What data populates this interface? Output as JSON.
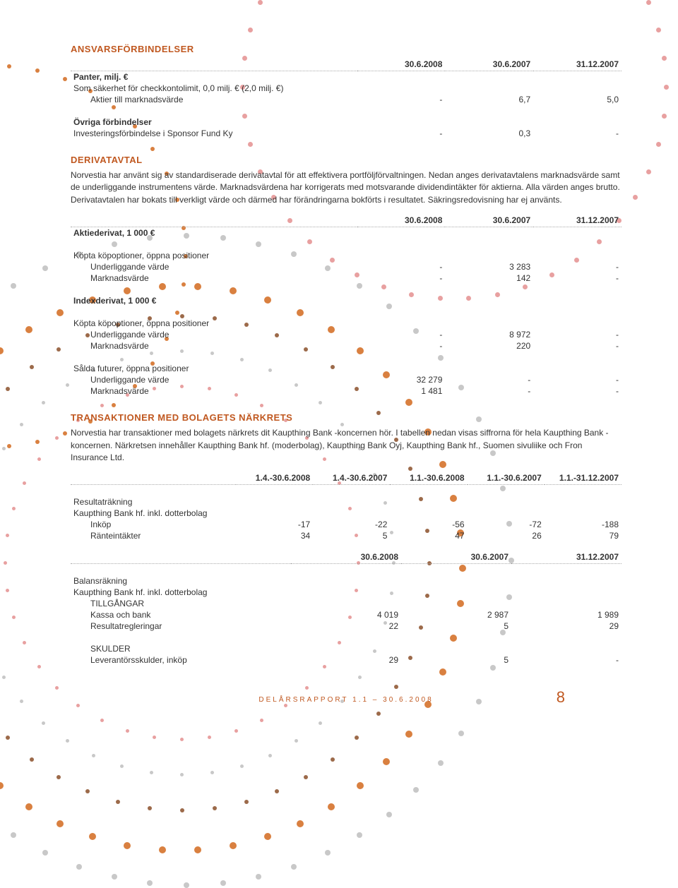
{
  "section1": {
    "title": "ANSVARSFÖRBINDELSER",
    "cols": [
      "30.6.2008",
      "30.6.2007",
      "31.12.2007"
    ],
    "row1_label": "Panter, milj. €",
    "row2_label": "Som säkerhet för checkkontolimit, 0,0 milj. € (2,0 milj. €)",
    "row3_label": "Aktier till marknadsvärde",
    "row3_vals": [
      "-",
      "6,7",
      "5,0"
    ],
    "row4_label": "Övriga förbindelser",
    "row5_label": "Investeringsförbindelse i Sponsor Fund Ky",
    "row5_vals": [
      "-",
      "0,3",
      "-"
    ]
  },
  "section2": {
    "title": "DERIVATAVTAL",
    "paragraph": "Norvestia har använt sig av standardiserade derivatavtal för att effektivera portföljförvaltningen. Nedan anges derivatavtalens marknadsvärde samt de underliggande instrumentens värde. Marknadsvärdena har korrigerats med motsvarande dividendintäkter för aktierna. Alla värden anges brutto. Derivatavtalen har bokats till verkligt värde och därmed har förändringarna bokförts i resultatet. Säkringsredovisning har ej använts.",
    "cols": [
      "30.6.2008",
      "30.6.2007",
      "31.12.2007"
    ],
    "grp1": "Aktiederivat, 1 000 €",
    "grp1_sub": "Köpta köpoptioner, öppna positioner",
    "grp1_r1_label": "Underliggande värde",
    "grp1_r1_vals": [
      "-",
      "3 283",
      "-"
    ],
    "grp1_r2_label": "Marknadsvärde",
    "grp1_r2_vals": [
      "-",
      "142",
      "-"
    ],
    "grp2": "Indexderivat, 1 000 €",
    "grp2_sub1": "Köpta köpoptioner, öppna positioner",
    "grp2_r1_label": "Underliggande värde",
    "grp2_r1_vals": [
      "-",
      "8 972",
      "-"
    ],
    "grp2_r2_label": "Marknadsvärde",
    "grp2_r2_vals": [
      "-",
      "220",
      "-"
    ],
    "grp2_sub2": "Sålda futurer, öppna positioner",
    "grp2_r3_label": "Underliggande värde",
    "grp2_r3_vals": [
      "32 279",
      "-",
      "-"
    ],
    "grp2_r4_label": "Marknadsvärde",
    "grp2_r4_vals": [
      "1 481",
      "-",
      "-"
    ]
  },
  "section3": {
    "title": "TRANSAKTIONER MED BOLAGETS NÄRKRETS",
    "paragraph": "Norvestia har transaktioner med bolagets närkrets dit Kaupthing Bank -koncernen hör. I tabellen nedan visas siffrorna för hela Kaupthing Bank -koncernen. Närkretsen innehåller Kaupthing Bank hf. (moderbolag), Kaupthing Bank Oyj, Kaupthing Bank hf., Suomen sivuliike och Fron Insurance Ltd.",
    "cols5": [
      "1.4.-30.6.2008",
      "1.4.-30.6.2007",
      "1.1.-30.6.2008",
      "1.1.-30.6.2007",
      "1.1.-31.12.2007"
    ],
    "grpA": "Resultaträkning",
    "grpA_sub": "Kaupthing Bank hf. inkl. dotterbolag",
    "grpA_r1_label": "Inköp",
    "grpA_r1_vals": [
      "-17",
      "-22",
      "-56",
      "-72",
      "-188"
    ],
    "grpA_r2_label": "Ränteintäkter",
    "grpA_r2_vals": [
      "34",
      "5",
      "47",
      "26",
      "79"
    ],
    "cols3": [
      "30.6.2008",
      "30.6.2007",
      "31.12.2007"
    ],
    "grpB": "Balansräkning",
    "grpB_sub": "Kaupthing Bank hf. inkl. dotterbolag",
    "grpB_h1": "TILLGÅNGAR",
    "grpB_r1_label": "Kassa och bank",
    "grpB_r1_vals": [
      "4 019",
      "2 987",
      "1 989"
    ],
    "grpB_r2_label": "Resultatregleringar",
    "grpB_r2_vals": [
      "22",
      "5",
      "29"
    ],
    "grpB_h2": "SKULDER",
    "grpB_r3_label": "Leverantörsskulder, inköp",
    "grpB_r3_vals": [
      "29",
      "5",
      "-"
    ]
  },
  "footer": {
    "left": "DELÅRSRAPPORT 1.1 – 30.6.2008",
    "page": "8"
  },
  "dot_colors": {
    "rose": "#e8a0a0",
    "orange": "#d98040",
    "grey": "#c8c8c8",
    "brown": "#9c6a4a"
  }
}
